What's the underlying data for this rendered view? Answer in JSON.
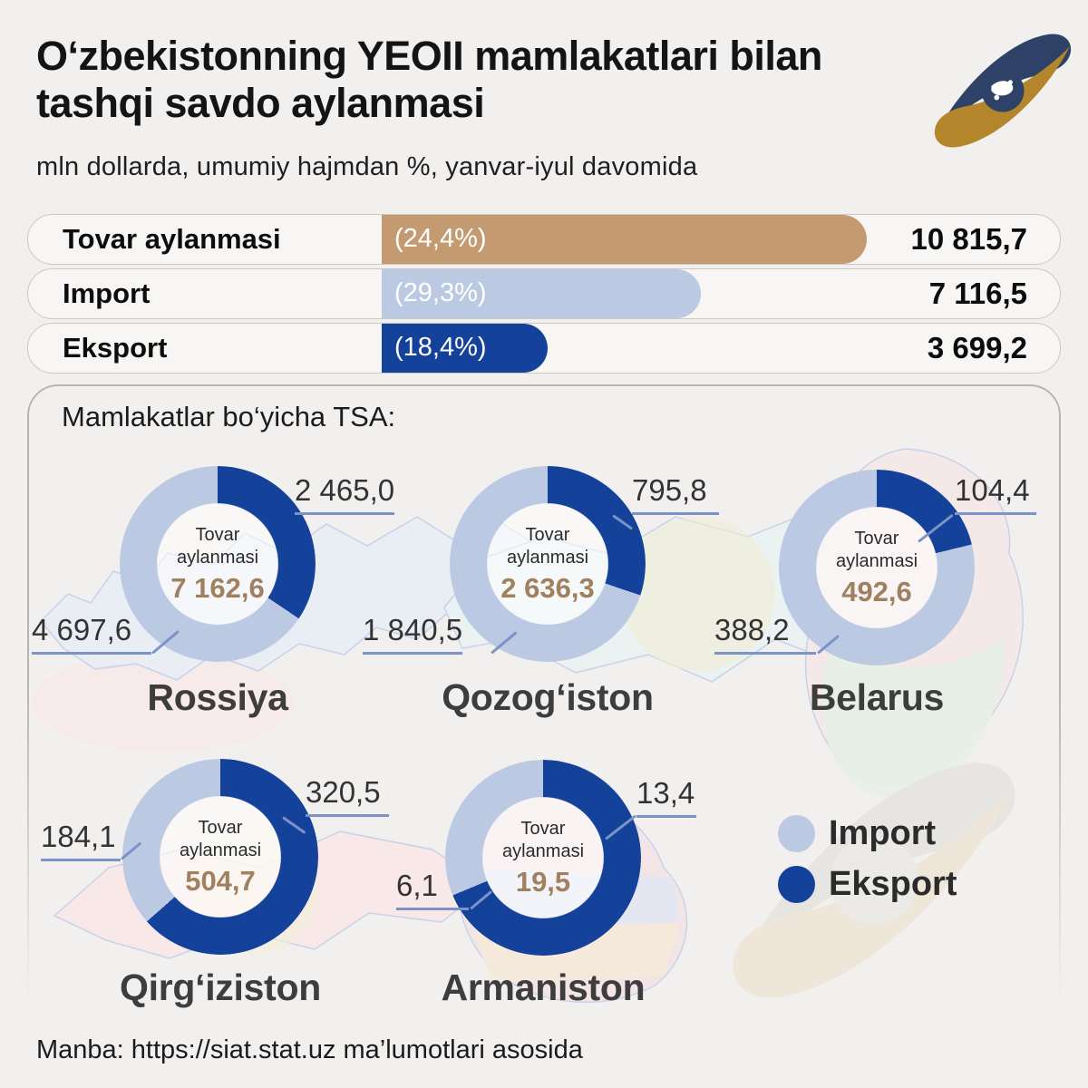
{
  "header": {
    "title": "O‘zbekistonning YEOII mamlakatlari bilan tashqi savdo aylanmasi",
    "subtitle": "mln dollarda, umumiy hajmdan %,  yanvar-iyul davomida"
  },
  "icons": {
    "logo": "eaeu-logo",
    "watermark": "eaeu-logo-watermark"
  },
  "overview": {
    "max_value": 10815.7,
    "bars": [
      {
        "label": "Tovar aylanmasi",
        "pct_display": "(24,4%)",
        "value_display": "10 815,7",
        "value_num": 10815.7,
        "color_key": "turnover"
      },
      {
        "label": "Import",
        "pct_display": "(29,3%)",
        "value_display": "7 116,5",
        "value_num": 7116.5,
        "color_key": "import"
      },
      {
        "label": "Eksport",
        "pct_display": "(18,4%)",
        "value_display": "3 699,2",
        "value_num": 3699.2,
        "color_key": "eksport"
      }
    ]
  },
  "section": {
    "title": "Mamlakatlar bo‘yicha TSA:"
  },
  "donut_center_label": "Tovar aylanmasi",
  "countries": [
    {
      "name": "Rossiya",
      "total_display": "7 162,6",
      "total_num": 7162.6,
      "eksport_display": "2 465,0",
      "eksport_num": 2465.0,
      "import_display": "4 697,6",
      "import_num": 4697.6
    },
    {
      "name": "Qozog‘iston",
      "total_display": "2 636,3",
      "total_num": 2636.3,
      "eksport_display": "795,8",
      "eksport_num": 795.8,
      "import_display": "1 840,5",
      "import_num": 1840.5
    },
    {
      "name": "Belarus",
      "total_display": "492,6",
      "total_num": 492.6,
      "eksport_display": "104,4",
      "eksport_num": 104.4,
      "import_display": "388,2",
      "import_num": 388.2
    },
    {
      "name": "Qirg‘iziston",
      "total_display": "504,7",
      "total_num": 504.7,
      "eksport_display": "320,5",
      "eksport_num": 320.5,
      "import_display": "184,1",
      "import_num": 184.1
    },
    {
      "name": "Armaniston",
      "total_display": "19,5",
      "total_num": 19.5,
      "eksport_display": "13,4",
      "eksport_num": 13.4,
      "import_display": "6,1",
      "import_num": 6.1
    }
  ],
  "legend": {
    "import_label": "Import",
    "eksport_label": "Eksport"
  },
  "footer": {
    "source": "Manba: https://siat.stat.uz ma’lumotlari asosida"
  },
  "colors": {
    "turnover": "#c49a71",
    "import": "#bcc9e2",
    "eksport": "#14429a",
    "callout_line": "#7b93c6",
    "center_value": "#a0805f",
    "background": "#f2f0ee"
  },
  "chart_data": [
    {
      "type": "bar",
      "title": "O‘zbekistonning YEOII mamlakatlari bilan tashqi savdo aylanmasi",
      "subtitle": "mln dollarda, umumiy hajmdan %, yanvar-iyul davomida",
      "categories": [
        "Tovar aylanmasi",
        "Import",
        "Eksport"
      ],
      "values": [
        10815.7,
        7116.5,
        3699.2
      ],
      "percent_of_total": [
        24.4,
        29.3,
        18.4
      ],
      "unit": "mln USD",
      "orientation": "horizontal"
    },
    {
      "type": "pie",
      "title": "Rossiya",
      "labels": [
        "Eksport",
        "Import"
      ],
      "values": [
        2465.0,
        4697.6
      ],
      "total": 7162.6
    },
    {
      "type": "pie",
      "title": "Qozog‘iston",
      "labels": [
        "Eksport",
        "Import"
      ],
      "values": [
        795.8,
        1840.5
      ],
      "total": 2636.3
    },
    {
      "type": "pie",
      "title": "Belarus",
      "labels": [
        "Eksport",
        "Import"
      ],
      "values": [
        104.4,
        388.2
      ],
      "total": 492.6
    },
    {
      "type": "pie",
      "title": "Qirg‘iziston",
      "labels": [
        "Eksport",
        "Import"
      ],
      "values": [
        320.5,
        184.1
      ],
      "total": 504.7
    },
    {
      "type": "pie",
      "title": "Armaniston",
      "labels": [
        "Eksport",
        "Import"
      ],
      "values": [
        13.4,
        6.1
      ],
      "total": 19.5
    }
  ]
}
